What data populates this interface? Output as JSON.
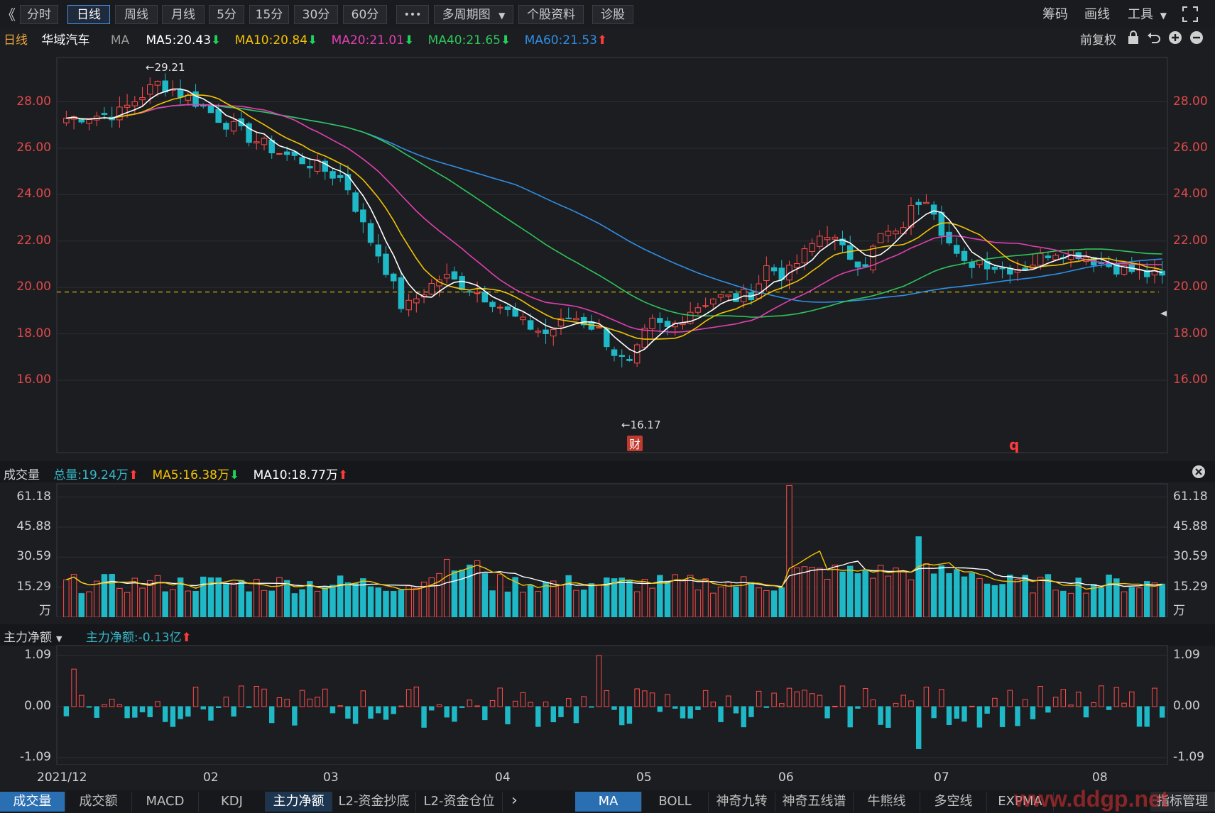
{
  "toolbar": {
    "back_icon": "double-chevron-left-icon",
    "periods": [
      "分时",
      "日线",
      "周线",
      "月线",
      "5分",
      "15分",
      "30分",
      "60分"
    ],
    "active_period": "日线",
    "more_label": "•••",
    "multi_cycle_label": "多周期图",
    "profile_label": "个股资料",
    "diagnosis_label": "诊股",
    "right": {
      "chips": "筹码",
      "draw": "画线",
      "tools": "工具",
      "fullscreen_icon": "fullscreen-icon"
    }
  },
  "main_legend": {
    "period": "日线",
    "stock_name": "华域汽车",
    "ma_label": "MA",
    "ma5": "MA5:20.43",
    "ma10": "MA10:20.84",
    "ma20": "MA20:21.01",
    "ma40": "MA40:21.65",
    "ma60": "MA60:21.53",
    "adjust": "前复权",
    "colors": {
      "ma5": "#ffffff",
      "ma10": "#f2c200",
      "ma20": "#e040b0",
      "ma40": "#2ec55a",
      "ma60": "#2f8fe6"
    }
  },
  "volume_legend": {
    "title": "成交量",
    "total": "总量:19.24万",
    "ma5": "MA5:16.38万",
    "ma10": "MA10:18.77万"
  },
  "net_legend": {
    "title": "主力净额",
    "value": "主力净额:-0.13亿"
  },
  "price_axis": [
    "28.00",
    "26.00",
    "24.00",
    "22.00",
    "20.00",
    "18.00",
    "16.00"
  ],
  "volume_axis": [
    "61.18",
    "45.88",
    "30.59",
    "15.29",
    "万"
  ],
  "net_axis": [
    "1.09",
    "0.00",
    "-1.09"
  ],
  "x_axis": [
    "2021/12",
    "02",
    "03",
    "04",
    "05",
    "06",
    "07",
    "08"
  ],
  "annotations": {
    "high": "29.21",
    "low": "16.17",
    "finance_badge": "财",
    "marker_q": "q"
  },
  "bottom_tabs_left": [
    "成交量",
    "成交额",
    "MACD",
    "KDJ",
    "主力净额",
    "L2-资金抄底",
    "L2-资金仓位"
  ],
  "bottom_tabs_right": [
    "MA",
    "BOLL",
    "神奇九转",
    "神奇五线谱",
    "牛熊线",
    "多空线",
    "EXPMA",
    "指标管理"
  ],
  "watermark": "www.ddgp.net",
  "chart_data": {
    "type": "candlestick",
    "symbol": "华域汽车",
    "period": "日线",
    "price_range": [
      15.1,
      29.7
    ],
    "reference_line": 19.8,
    "candles": [],
    "volume_range": [
      0,
      61.18
    ],
    "net_range": [
      -1.09,
      1.09
    ]
  }
}
